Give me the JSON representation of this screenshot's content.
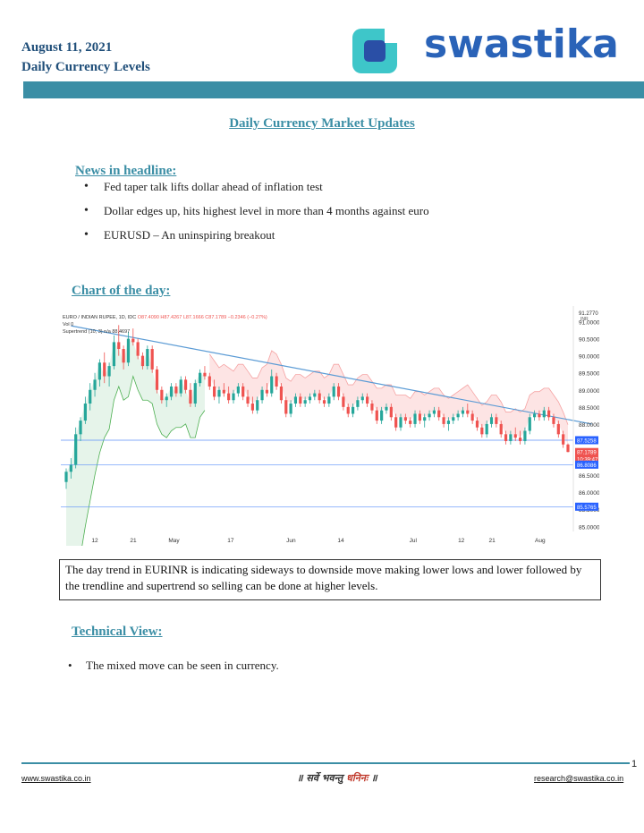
{
  "header": {
    "date": "August 11, 2021",
    "subtitle": "Daily Currency Levels",
    "logo_text": "swastika"
  },
  "title": "Daily Currency Market Updates",
  "news": {
    "heading": "News in headline:",
    "items": [
      "Fed taper talk lifts dollar ahead of inflation test",
      "Dollar edges up, hits highest level in more than 4 months against euro",
      "EURUSD – An uninspiring breakout"
    ]
  },
  "chart_section": {
    "heading": "Chart of the day:"
  },
  "chart_data": {
    "type": "candlestick",
    "title": "EURO / INDIAN RUPEE, 1D, IDC",
    "ohlc_text": "O87.4090 H87.4267 L87.1666 C87.1789 −0.2346 (−0.27%)",
    "legend_lines": [
      "Vol 0",
      "Supertrend (10, 3) n/a 88.4697"
    ],
    "ylim": [
      84.85,
      91.25
    ],
    "y_ticks": [
      "91.0000",
      "90.5000",
      "90.0000",
      "89.5000",
      "89.0000",
      "88.5000",
      "88.0000",
      "86.5000",
      "86.0000",
      "85.5000",
      "85.0000"
    ],
    "y_top_label": "91.2770",
    "y_top_unit": "INR",
    "x_ticks": [
      "12",
      "21",
      "May",
      "17",
      "Jun",
      "14",
      "Jul",
      "12",
      "21",
      "Aug"
    ],
    "price_labels": [
      {
        "text": "87.5258",
        "value": 87.5258,
        "color": "#2962ff"
      },
      {
        "text": "87.1789",
        "value": 87.1789,
        "color": "#ef5350"
      },
      {
        "text": "10:39:47",
        "value": 86.98,
        "color": "#ef5350"
      },
      {
        "text": "86.8086",
        "value": 86.8086,
        "color": "#2962ff"
      },
      {
        "text": "85.5765",
        "value": 85.5765,
        "color": "#2962ff"
      }
    ],
    "hlines": [
      87.5258,
      86.8086,
      85.5765
    ],
    "trendline": {
      "from": [
        1,
        90.88
      ],
      "to": [
        110,
        88.0
      ]
    },
    "candles": [
      [
        86.3,
        86.7,
        86.1,
        86.6
      ],
      [
        86.6,
        87.0,
        86.4,
        86.8
      ],
      [
        86.8,
        87.9,
        86.7,
        87.7
      ],
      [
        87.7,
        88.2,
        87.5,
        88.1
      ],
      [
        88.1,
        88.8,
        88.0,
        88.6
      ],
      [
        88.6,
        89.2,
        88.4,
        89.0
      ],
      [
        89.0,
        89.5,
        88.8,
        89.3
      ],
      [
        89.3,
        89.9,
        89.1,
        89.8
      ],
      [
        89.8,
        90.1,
        89.2,
        89.4
      ],
      [
        89.4,
        89.8,
        89.1,
        89.7
      ],
      [
        89.7,
        90.6,
        89.6,
        90.4
      ],
      [
        90.4,
        90.9,
        90.0,
        90.2
      ],
      [
        90.2,
        90.3,
        89.6,
        89.8
      ],
      [
        89.8,
        90.7,
        89.7,
        90.5
      ],
      [
        90.5,
        90.8,
        90.3,
        90.4
      ],
      [
        90.4,
        90.5,
        89.9,
        90.0
      ],
      [
        90.0,
        90.1,
        89.6,
        89.7
      ],
      [
        89.7,
        90.3,
        89.6,
        90.2
      ],
      [
        90.2,
        90.3,
        89.5,
        89.6
      ],
      [
        89.6,
        89.7,
        88.9,
        89.0
      ],
      [
        89.0,
        89.1,
        88.6,
        88.7
      ],
      [
        88.7,
        88.9,
        88.5,
        88.8
      ],
      [
        88.8,
        89.2,
        88.7,
        89.1
      ],
      [
        89.1,
        89.2,
        88.8,
        88.9
      ],
      [
        88.9,
        89.4,
        88.8,
        89.3
      ],
      [
        89.3,
        89.4,
        88.9,
        89.0
      ],
      [
        89.0,
        89.2,
        88.5,
        88.6
      ],
      [
        88.6,
        89.3,
        88.5,
        89.2
      ],
      [
        89.2,
        89.6,
        89.1,
        89.5
      ],
      [
        89.5,
        89.7,
        89.3,
        89.4
      ],
      [
        89.4,
        89.5,
        89.0,
        89.1
      ],
      [
        89.1,
        89.3,
        88.7,
        88.8
      ],
      [
        88.8,
        89.1,
        88.6,
        89.0
      ],
      [
        89.0,
        89.2,
        88.8,
        88.9
      ],
      [
        88.9,
        89.1,
        88.6,
        88.7
      ],
      [
        88.7,
        89.0,
        88.6,
        88.9
      ],
      [
        88.9,
        89.2,
        88.8,
        89.1
      ],
      [
        89.1,
        89.2,
        88.7,
        88.8
      ],
      [
        88.8,
        89.0,
        88.5,
        88.6
      ],
      [
        88.6,
        88.8,
        88.3,
        88.4
      ],
      [
        88.4,
        88.8,
        88.3,
        88.7
      ],
      [
        88.7,
        89.1,
        88.6,
        89.0
      ],
      [
        89.0,
        89.2,
        88.8,
        88.9
      ],
      [
        88.9,
        89.6,
        88.8,
        89.4
      ],
      [
        89.4,
        89.5,
        89.0,
        89.1
      ],
      [
        89.1,
        89.2,
        88.6,
        88.7
      ],
      [
        88.7,
        88.8,
        88.2,
        88.3
      ],
      [
        88.3,
        88.7,
        88.2,
        88.6
      ],
      [
        88.6,
        88.9,
        88.5,
        88.8
      ],
      [
        88.8,
        88.9,
        88.5,
        88.6
      ],
      [
        88.6,
        88.8,
        88.5,
        88.7
      ],
      [
        88.7,
        88.9,
        88.6,
        88.8
      ],
      [
        88.8,
        89.0,
        88.7,
        88.9
      ],
      [
        88.9,
        89.0,
        88.6,
        88.7
      ],
      [
        88.7,
        88.8,
        88.5,
        88.6
      ],
      [
        88.6,
        88.9,
        88.5,
        88.8
      ],
      [
        88.8,
        89.2,
        88.7,
        89.1
      ],
      [
        89.1,
        89.2,
        88.7,
        88.8
      ],
      [
        88.8,
        88.9,
        88.4,
        88.5
      ],
      [
        88.5,
        88.6,
        88.2,
        88.3
      ],
      [
        88.3,
        88.6,
        88.2,
        88.5
      ],
      [
        88.5,
        88.8,
        88.4,
        88.7
      ],
      [
        88.7,
        88.9,
        88.6,
        88.8
      ],
      [
        88.8,
        88.9,
        88.5,
        88.6
      ],
      [
        88.6,
        88.7,
        88.3,
        88.4
      ],
      [
        88.4,
        88.5,
        88.0,
        88.1
      ],
      [
        88.1,
        88.5,
        88.0,
        88.4
      ],
      [
        88.4,
        88.6,
        88.3,
        88.5
      ],
      [
        88.5,
        88.6,
        88.1,
        88.2
      ],
      [
        88.2,
        88.3,
        87.8,
        87.9
      ],
      [
        87.9,
        88.3,
        87.8,
        88.2
      ],
      [
        88.2,
        88.3,
        88.0,
        88.1
      ],
      [
        88.1,
        88.2,
        87.9,
        88.0
      ],
      [
        88.0,
        88.4,
        87.9,
        88.3
      ],
      [
        88.3,
        88.4,
        88.0,
        88.1
      ],
      [
        88.1,
        88.3,
        87.9,
        88.2
      ],
      [
        88.2,
        88.4,
        88.1,
        88.3
      ],
      [
        88.3,
        88.5,
        88.2,
        88.4
      ],
      [
        88.4,
        88.5,
        88.1,
        88.2
      ],
      [
        88.2,
        88.3,
        87.9,
        88.0
      ],
      [
        88.0,
        88.2,
        87.8,
        88.1
      ],
      [
        88.1,
        88.3,
        88.0,
        88.2
      ],
      [
        88.2,
        88.4,
        88.1,
        88.3
      ],
      [
        88.3,
        88.5,
        88.2,
        88.4
      ],
      [
        88.4,
        88.6,
        88.2,
        88.3
      ],
      [
        88.3,
        88.4,
        88.0,
        88.1
      ],
      [
        88.1,
        88.2,
        87.8,
        87.9
      ],
      [
        87.9,
        88.0,
        87.6,
        87.7
      ],
      [
        87.7,
        88.1,
        87.6,
        88.0
      ],
      [
        88.0,
        88.3,
        87.9,
        88.2
      ],
      [
        88.2,
        88.3,
        87.9,
        88.0
      ],
      [
        88.0,
        88.1,
        87.6,
        87.7
      ],
      [
        87.7,
        87.8,
        87.4,
        87.5
      ],
      [
        87.5,
        87.8,
        87.4,
        87.7
      ],
      [
        87.7,
        87.9,
        87.5,
        87.6
      ],
      [
        87.6,
        87.8,
        87.4,
        87.5
      ],
      [
        87.5,
        87.9,
        87.4,
        87.8
      ],
      [
        87.8,
        88.3,
        87.7,
        88.2
      ],
      [
        88.2,
        88.4,
        88.1,
        88.3
      ],
      [
        88.3,
        88.4,
        88.1,
        88.2
      ],
      [
        88.2,
        88.5,
        88.1,
        88.4
      ],
      [
        88.4,
        88.5,
        88.1,
        88.2
      ],
      [
        88.2,
        88.3,
        87.9,
        88.0
      ],
      [
        88.0,
        88.1,
        87.6,
        87.7
      ],
      [
        87.7,
        87.8,
        87.3,
        87.4
      ],
      [
        87.4,
        87.43,
        87.17,
        87.18
      ]
    ]
  },
  "analysis_box": "The day trend in EURINR is indicating sideways to downside move making lower lows and lower followed by the trendline and supertrend so selling can be done at higher levels.",
  "technical": {
    "heading": "Technical View:",
    "items": [
      "The mixed move can be seen in currency."
    ]
  },
  "footer": {
    "page_number": "1",
    "website": "www.swastika.co.in",
    "email": "research@swastika.co.in",
    "motto_part1": "॥ सर्वे भवन्तु ",
    "motto_part2": "धनिनः",
    "motto_part3": " ॥"
  }
}
